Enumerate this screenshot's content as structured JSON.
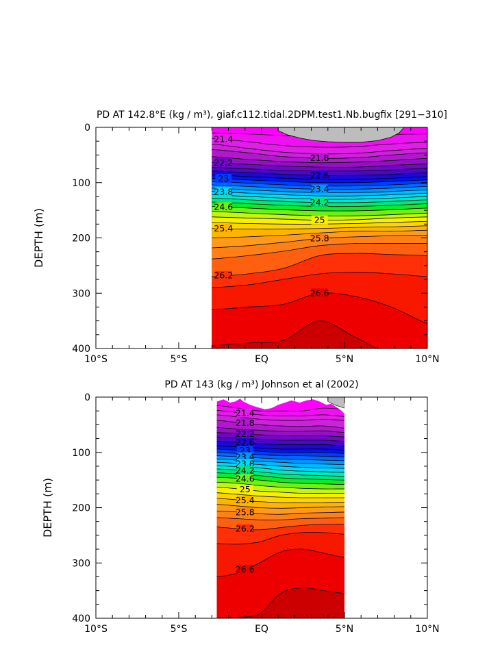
{
  "chart_data": [
    {
      "type": "contour",
      "title": "PD AT 142.8°E (kg / m³), giaf.c112.tidal.2DPM.test1.Nb.bugfix [291−310]",
      "ylabel": "DEPTH (m)",
      "xlabel": "",
      "xlim": [
        -10,
        10
      ],
      "ylim": [
        400,
        0
      ],
      "x_ticks": [
        -10,
        -5,
        0,
        5,
        10
      ],
      "x_tick_labels": [
        "10°S",
        "5°S",
        "EQ",
        "5°N",
        "10°N"
      ],
      "y_ticks": [
        0,
        100,
        200,
        300,
        400
      ],
      "y_tick_labels": [
        "0",
        "100",
        "200",
        "300",
        "400"
      ],
      "data_lat_range": [
        -3,
        10
      ],
      "contour_interval": 0.2,
      "masked_region": "surface cap 1°N–8.7°N, 0–30 m",
      "contours": [
        {
          "level": 21.2,
          "depths": [
            10,
            12,
            15,
            17,
            16,
            13,
            12
          ]
        },
        {
          "level": 21.4,
          "depths": [
            20,
            26,
            33,
            36,
            35,
            30,
            27
          ]
        },
        {
          "level": 21.6,
          "depths": [
            30,
            38,
            45,
            48,
            47,
            42,
            38
          ]
        },
        {
          "level": 21.8,
          "depths": [
            40,
            46,
            53,
            56,
            55,
            50,
            46
          ]
        },
        {
          "level": 22.0,
          "depths": [
            53,
            58,
            62,
            64,
            63,
            60,
            56
          ]
        },
        {
          "level": 22.2,
          "depths": [
            63,
            67,
            70,
            72,
            72,
            69,
            66
          ]
        },
        {
          "level": 22.4,
          "depths": [
            72,
            75,
            78,
            79,
            79,
            77,
            74
          ]
        },
        {
          "level": 22.6,
          "depths": [
            79,
            82,
            85,
            87,
            87,
            85,
            82
          ]
        },
        {
          "level": 22.8,
          "depths": [
            86,
            89,
            92,
            94,
            94,
            92,
            89
          ]
        },
        {
          "level": 23.0,
          "depths": [
            92,
            95,
            98,
            100,
            100,
            98,
            95
          ]
        },
        {
          "level": 23.2,
          "depths": [
            98,
            101,
            104,
            106,
            106,
            104,
            101
          ]
        },
        {
          "level": 23.4,
          "depths": [
            104,
            107,
            110,
            112,
            112,
            110,
            107
          ]
        },
        {
          "level": 23.6,
          "depths": [
            110,
            113,
            116,
            118,
            118,
            116,
            113
          ]
        },
        {
          "level": 23.8,
          "depths": [
            116,
            119,
            122,
            124,
            124,
            122,
            119
          ]
        },
        {
          "level": 24.0,
          "depths": [
            122,
            125,
            128,
            130,
            130,
            128,
            125
          ]
        },
        {
          "level": 24.2,
          "depths": [
            128,
            131,
            134,
            136,
            136,
            134,
            131
          ]
        },
        {
          "level": 24.4,
          "depths": [
            135,
            138,
            141,
            143,
            143,
            141,
            138
          ]
        },
        {
          "level": 24.6,
          "depths": [
            143,
            146,
            149,
            151,
            151,
            149,
            146
          ]
        },
        {
          "level": 24.8,
          "depths": [
            152,
            155,
            158,
            160,
            160,
            158,
            155
          ]
        },
        {
          "level": 25.0,
          "depths": [
            162,
            164,
            166,
            168,
            167,
            164,
            162
          ]
        },
        {
          "level": 25.2,
          "depths": [
            172,
            174,
            175,
            175,
            174,
            172,
            170
          ]
        },
        {
          "level": 25.4,
          "depths": [
            183,
            184,
            184,
            183,
            181,
            180,
            178
          ]
        },
        {
          "level": 25.6,
          "depths": [
            200,
            198,
            195,
            191,
            188,
            188,
            186
          ]
        },
        {
          "level": 25.8,
          "depths": [
            218,
            214,
            208,
            201,
            198,
            196,
            195
          ]
        },
        {
          "level": 26.0,
          "depths": [
            238,
            232,
            224,
            214,
            210,
            210,
            210
          ]
        },
        {
          "level": 26.2,
          "depths": [
            270,
            265,
            255,
            232,
            228,
            230,
            232
          ]
        },
        {
          "level": 26.4,
          "depths": [
            290,
            285,
            275,
            265,
            262,
            265,
            270
          ]
        },
        {
          "level": 26.6,
          "depths": [
            330,
            325,
            320,
            300,
            306,
            325,
            355
          ]
        },
        {
          "level": 26.8,
          "depths": [
            395,
            390,
            385,
            350,
            380,
            410,
            410
          ]
        }
      ]
    },
    {
      "type": "contour",
      "title": "PD AT 143 (kg / m³) Johnson et al (2002)",
      "ylabel": "DEPTH (m)",
      "xlabel": "",
      "xlim": [
        -10,
        10
      ],
      "ylim": [
        400,
        0
      ],
      "x_ticks": [
        -10,
        -5,
        0,
        5,
        10
      ],
      "x_tick_labels": [
        "10°S",
        "5°S",
        "EQ",
        "5°N",
        "10°N"
      ],
      "y_ticks": [
        0,
        100,
        200,
        300,
        400
      ],
      "y_tick_labels": [
        "0",
        "100",
        "200",
        "300",
        "400"
      ],
      "data_lat_range": [
        -2.7,
        5
      ],
      "contour_interval": 0.2,
      "masked_region": "irregular surface gaps above 5–20 m",
      "contours": [
        {
          "level": 21.2,
          "depths": [
            15,
            20,
            25,
            25,
            25,
            20,
            22
          ]
        },
        {
          "level": 21.4,
          "depths": [
            24,
            28,
            32,
            34,
            34,
            32,
            35
          ]
        },
        {
          "level": 21.6,
          "depths": [
            32,
            36,
            40,
            42,
            42,
            40,
            42
          ]
        },
        {
          "level": 21.8,
          "depths": [
            42,
            46,
            50,
            52,
            53,
            52,
            56
          ]
        },
        {
          "level": 22.0,
          "depths": [
            55,
            58,
            60,
            62,
            62,
            61,
            64
          ]
        },
        {
          "level": 22.2,
          "depths": [
            64,
            66,
            68,
            70,
            70,
            70,
            72
          ]
        },
        {
          "level": 22.4,
          "depths": [
            72,
            74,
            76,
            78,
            78,
            78,
            80
          ]
        },
        {
          "level": 22.6,
          "depths": [
            80,
            82,
            84,
            86,
            86,
            86,
            88
          ]
        },
        {
          "level": 22.8,
          "depths": [
            88,
            90,
            92,
            94,
            94,
            94,
            96
          ]
        },
        {
          "level": 23.0,
          "depths": [
            94,
            96,
            98,
            100,
            100,
            100,
            102
          ]
        },
        {
          "level": 23.2,
          "depths": [
            100,
            102,
            104,
            106,
            106,
            107,
            108
          ]
        },
        {
          "level": 23.4,
          "depths": [
            106,
            108,
            110,
            112,
            113,
            114,
            115
          ]
        },
        {
          "level": 23.6,
          "depths": [
            112,
            114,
            116,
            118,
            120,
            121,
            122
          ]
        },
        {
          "level": 23.8,
          "depths": [
            118,
            120,
            122,
            125,
            127,
            128,
            129
          ]
        },
        {
          "level": 24.0,
          "depths": [
            124,
            126,
            128,
            132,
            134,
            135,
            136
          ]
        },
        {
          "level": 24.2,
          "depths": [
            130,
            132,
            135,
            139,
            141,
            142,
            143
          ]
        },
        {
          "level": 24.4,
          "depths": [
            137,
            139,
            142,
            146,
            148,
            149,
            150
          ]
        },
        {
          "level": 24.6,
          "depths": [
            145,
            147,
            150,
            154,
            156,
            157,
            158
          ]
        },
        {
          "level": 24.8,
          "depths": [
            154,
            156,
            160,
            163,
            165,
            166,
            166
          ]
        },
        {
          "level": 25.0,
          "depths": [
            163,
            166,
            170,
            172,
            174,
            174,
            174
          ]
        },
        {
          "level": 25.2,
          "depths": [
            173,
            176,
            179,
            181,
            182,
            182,
            182
          ]
        },
        {
          "level": 25.4,
          "depths": [
            183,
            186,
            189,
            191,
            191,
            191,
            190
          ]
        },
        {
          "level": 25.6,
          "depths": [
            194,
            197,
            200,
            201,
            200,
            199,
            198
          ]
        },
        {
          "level": 25.8,
          "depths": [
            206,
            208,
            211,
            212,
            210,
            209,
            208
          ]
        },
        {
          "level": 26.0,
          "depths": [
            218,
            220,
            222,
            222,
            220,
            219,
            218
          ]
        },
        {
          "level": 26.2,
          "depths": [
            235,
            238,
            240,
            236,
            232,
            230,
            230
          ]
        },
        {
          "level": 26.4,
          "depths": [
            265,
            266,
            262,
            250,
            245,
            245,
            248
          ]
        },
        {
          "level": 26.6,
          "depths": [
            325,
            318,
            300,
            280,
            275,
            282,
            290
          ]
        },
        {
          "level": 26.8,
          "depths": [
            400,
            398,
            392,
            355,
            345,
            350,
            355
          ]
        }
      ]
    }
  ]
}
